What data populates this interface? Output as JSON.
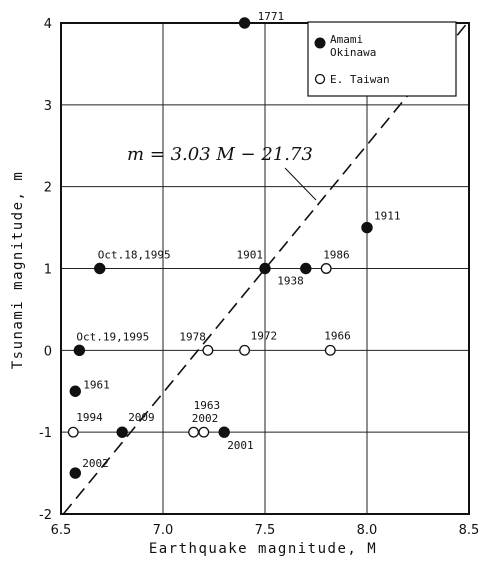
{
  "chart_data": {
    "type": "scatter",
    "xlabel": "Earthquake magnitude,  M",
    "ylabel": "Tsunami magnitude,  m",
    "xlim": [
      6.5,
      8.5
    ],
    "ylim": [
      -2,
      4
    ],
    "x_ticks": [
      "6.5",
      "7.0",
      "7.5",
      "8.0",
      "8.5"
    ],
    "y_ticks": [
      "-2",
      "-1",
      "0",
      "1",
      "2",
      "3",
      "4"
    ],
    "grid": true,
    "legend_position": "top-right",
    "series": [
      {
        "name": "Amami Okinawa",
        "marker": "filled",
        "points": [
          {
            "label": "1771",
            "x": 7.4,
            "y": 4
          },
          {
            "label": "1911",
            "x": 8.0,
            "y": 1.5
          },
          {
            "label": "1901",
            "x": 7.5,
            "y": 1
          },
          {
            "label": "1938",
            "x": 7.7,
            "y": 1
          },
          {
            "label": "Oct.18,1995",
            "x": 6.69,
            "y": 1
          },
          {
            "label": "Oct.19,1995",
            "x": 6.59,
            "y": 0
          },
          {
            "label": "1961",
            "x": 6.57,
            "y": -0.5
          },
          {
            "label": "2009",
            "x": 6.8,
            "y": -1
          },
          {
            "label": "2001",
            "x": 7.3,
            "y": -1
          },
          {
            "label": "2002",
            "x": 6.57,
            "y": -1.5
          }
        ]
      },
      {
        "name": "E. Taiwan",
        "marker": "open",
        "points": [
          {
            "label": "1986",
            "x": 7.8,
            "y": 1
          },
          {
            "label": "1978",
            "x": 7.22,
            "y": 0
          },
          {
            "label": "1972",
            "x": 7.4,
            "y": 0
          },
          {
            "label": "1966",
            "x": 7.82,
            "y": 0
          },
          {
            "label": "1994",
            "x": 6.56,
            "y": -1
          },
          {
            "label": "1963",
            "x": 7.15,
            "y": -1
          },
          {
            "label": "2002",
            "x": 7.2,
            "y": -1
          }
        ]
      }
    ],
    "fit_line": {
      "equation": "m = 3.03 M − 21.73",
      "slope": 3.03,
      "intercept": -21.73,
      "style": "dashed"
    }
  }
}
